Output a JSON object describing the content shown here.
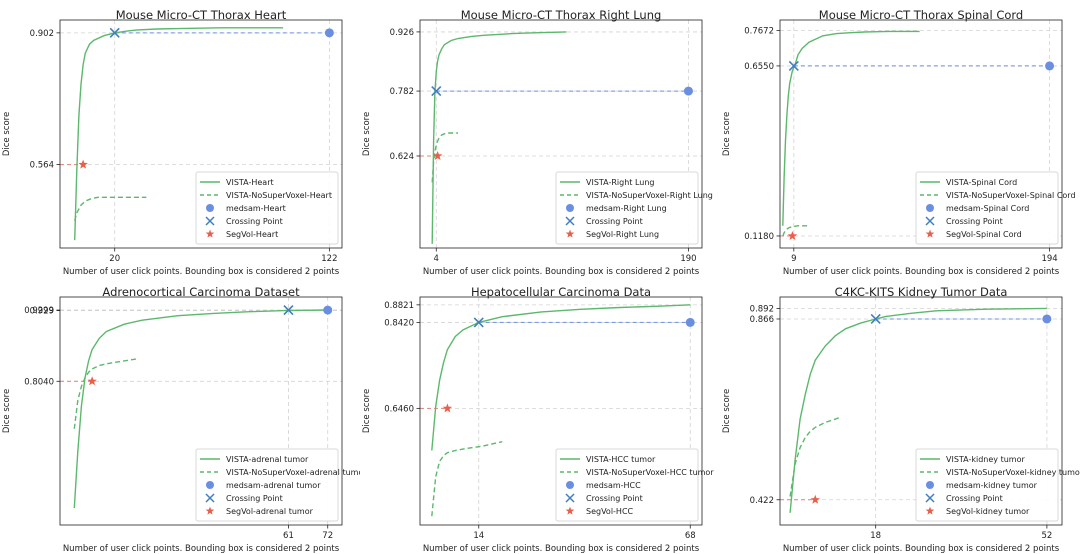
{
  "xlabel_common": "Number of user click points. Bounding box is considered 2 points",
  "ylabel_common": "Dice score",
  "colors": {
    "vista": "#5cb86c",
    "nosv": "#5cb86c",
    "medsam": "#6a8fe0",
    "crossing": "#3f7fbf",
    "segvol": "#e8604c",
    "grid": "#d3d3d3"
  },
  "legend_labels": {
    "medsam_prefix": "medsam-",
    "crossing": "Crossing Point",
    "segvol_prefix": "SegVol-"
  },
  "chart_data": [
    {
      "type": "line",
      "title": "Mouse Micro-CT Thorax Heart",
      "target": "Heart",
      "xlabel": "Number of user click points. Bounding box is considered 2 points",
      "ylabel": "Dice score",
      "xlim": [
        -6,
        128
      ],
      "ylim": [
        0.35,
        0.935
      ],
      "xticks": [
        20,
        122
      ],
      "yticks": [
        0.564,
        0.902
      ],
      "ytick_labels": [
        "0.564",
        "0.902"
      ],
      "series": [
        {
          "name": "VISTA-Heart",
          "style": "solid",
          "x": [
            1,
            2,
            3,
            4,
            5,
            6,
            8,
            10,
            15,
            20,
            25,
            30,
            40,
            50,
            60,
            70,
            80,
            90,
            100
          ],
          "y": [
            0.37,
            0.55,
            0.69,
            0.77,
            0.82,
            0.85,
            0.873,
            0.883,
            0.895,
            0.902,
            0.906,
            0.909,
            0.912,
            0.913,
            0.914,
            0.915,
            0.915,
            0.915,
            0.915
          ]
        },
        {
          "name": "VISTA-NoSuperVoxel-Heart",
          "style": "dashed",
          "x": [
            1,
            2,
            3,
            4,
            5,
            6,
            8,
            10,
            12,
            15,
            20,
            25,
            30,
            35
          ],
          "y": [
            0.42,
            0.44,
            0.45,
            0.46,
            0.465,
            0.47,
            0.475,
            0.478,
            0.48,
            0.48,
            0.48,
            0.48,
            0.48,
            0.48
          ]
        }
      ],
      "medsam": {
        "x": 122,
        "y": 0.902
      },
      "crossing": {
        "x": 20,
        "y": 0.902
      },
      "segvol": {
        "x": 5,
        "y": 0.564
      }
    },
    {
      "type": "line",
      "title": "Mouse Micro-CT Thorax Right Lung",
      "target": "Right Lung",
      "xlabel": "Number of user click points. Bounding box is considered 2 points",
      "ylabel": "Dice score",
      "xlim": [
        -8,
        200
      ],
      "ylim": [
        0.4,
        0.955
      ],
      "xticks": [
        4,
        190
      ],
      "yticks": [
        0.624,
        0.782,
        0.926
      ],
      "ytick_labels": [
        "0.624",
        "0.782",
        "0.926"
      ],
      "series": [
        {
          "name": "VISTA-Right Lung",
          "style": "solid",
          "x": [
            1,
            2,
            3,
            4,
            5,
            6,
            8,
            10,
            15,
            20,
            30,
            40,
            50,
            60,
            70,
            80,
            90,
            100
          ],
          "y": [
            0.41,
            0.66,
            0.78,
            0.83,
            0.855,
            0.87,
            0.885,
            0.895,
            0.905,
            0.91,
            0.915,
            0.918,
            0.92,
            0.922,
            0.923,
            0.924,
            0.925,
            0.926
          ]
        },
        {
          "name": "VISTA-NoSuperVoxel-Right Lung",
          "style": "dashed",
          "x": [
            1,
            2,
            3,
            4,
            5,
            6,
            8,
            10,
            12,
            15,
            20
          ],
          "y": [
            0.56,
            0.61,
            0.635,
            0.65,
            0.66,
            0.668,
            0.675,
            0.678,
            0.68,
            0.68,
            0.68
          ]
        }
      ],
      "medsam": {
        "x": 190,
        "y": 0.782
      },
      "crossing": {
        "x": 4,
        "y": 0.782
      },
      "segvol": {
        "x": 5,
        "y": 0.624
      }
    },
    {
      "type": "line",
      "title": "Mouse Micro-CT Thorax Spinal Cord",
      "target": "Spinal Cord",
      "xlabel": "Number of user click points. Bounding box is considered 2 points",
      "ylabel": "Dice score",
      "xlim": [
        -1,
        203
      ],
      "ylim": [
        0.08,
        0.8
      ],
      "xticks": [
        9,
        194
      ],
      "yticks": [
        0.118,
        0.655,
        0.7672
      ],
      "ytick_labels": [
        "0.1180",
        "0.6550",
        "0.7672"
      ],
      "series": [
        {
          "name": "VISTA-Spinal Cord",
          "style": "solid",
          "x": [
            1,
            2,
            3,
            4,
            5,
            6,
            8,
            10,
            12,
            15,
            20,
            25,
            30,
            40,
            50,
            60,
            70,
            80,
            90,
            100
          ],
          "y": [
            0.15,
            0.3,
            0.42,
            0.5,
            0.56,
            0.6,
            0.64,
            0.66,
            0.69,
            0.71,
            0.73,
            0.74,
            0.75,
            0.757,
            0.76,
            0.762,
            0.763,
            0.764,
            0.764,
            0.764
          ]
        },
        {
          "name": "VISTA-NoSuperVoxel-Spinal Cord",
          "style": "dashed",
          "x": [
            1,
            2,
            3,
            4,
            5,
            6,
            8,
            10,
            12,
            15,
            20
          ],
          "y": [
            0.118,
            0.128,
            0.135,
            0.14,
            0.143,
            0.145,
            0.147,
            0.149,
            0.15,
            0.15,
            0.15
          ]
        }
      ],
      "medsam": {
        "x": 194,
        "y": 0.655
      },
      "crossing": {
        "x": 9,
        "y": 0.655
      },
      "segvol": {
        "x": 8,
        "y": 0.118
      }
    },
    {
      "type": "line",
      "title": "Adrenocortical Carcinoma Dataset",
      "target": "adrenal tumor",
      "xlabel": "Number of user click points. Bounding box is considered 2 points",
      "ylabel": "Dice score",
      "xlim": [
        -3,
        76
      ],
      "ylim": [
        0.55,
        0.953
      ],
      "xticks": [
        61,
        72
      ],
      "yticks": [
        0.804,
        0.929,
        0.9299
      ],
      "ytick_labels": [
        "0.8040",
        "0.929",
        "0.9299"
      ],
      "series": [
        {
          "name": "VISTA-adrenal tumor",
          "style": "solid",
          "x": [
            1,
            2,
            3,
            4,
            5,
            6,
            8,
            10,
            15,
            20,
            30,
            40,
            50,
            60,
            72
          ],
          "y": [
            0.58,
            0.68,
            0.76,
            0.81,
            0.84,
            0.86,
            0.88,
            0.892,
            0.905,
            0.912,
            0.92,
            0.924,
            0.927,
            0.929,
            0.93
          ]
        },
        {
          "name": "VISTA-NoSuperVoxel-adrenal tumor",
          "style": "dashed",
          "x": [
            1,
            2,
            3,
            4,
            5,
            6,
            8,
            10,
            12,
            15,
            18,
            19
          ],
          "y": [
            0.72,
            0.77,
            0.795,
            0.81,
            0.82,
            0.826,
            0.832,
            0.835,
            0.837,
            0.84,
            0.843,
            0.845
          ]
        }
      ],
      "medsam": {
        "x": 72,
        "y": 0.9299
      },
      "crossing": {
        "x": 61,
        "y": 0.9299
      },
      "segvol": {
        "x": 6,
        "y": 0.804
      }
    },
    {
      "type": "line",
      "title": "Hepatocellular Carcinoma Data",
      "target": "HCC",
      "xlabel": "Number of user click points. Bounding box is considered 2 points",
      "ylabel": "Dice score",
      "xlim": [
        -1,
        71
      ],
      "ylim": [
        0.38,
        0.9
      ],
      "xticks": [
        14,
        68
      ],
      "yticks": [
        0.646,
        0.842,
        0.8821
      ],
      "ytick_labels": [
        "0.6460",
        "0.8420",
        "0.8821"
      ],
      "series": [
        {
          "name": "VISTA-HCC tumor",
          "style": "solid",
          "x": [
            2,
            3,
            4,
            5,
            6,
            8,
            10,
            14,
            20,
            30,
            40,
            50,
            60,
            68
          ],
          "y": [
            0.55,
            0.65,
            0.71,
            0.75,
            0.78,
            0.81,
            0.825,
            0.842,
            0.855,
            0.866,
            0.872,
            0.876,
            0.879,
            0.8821
          ]
        },
        {
          "name": "VISTA-NoSuperVoxel-HCC tumor",
          "style": "dashed",
          "x": [
            2,
            3,
            4,
            5,
            6,
            8,
            10,
            12,
            15,
            18,
            20
          ],
          "y": [
            0.4,
            0.49,
            0.525,
            0.538,
            0.545,
            0.55,
            0.553,
            0.556,
            0.56,
            0.566,
            0.57
          ]
        }
      ],
      "medsam": {
        "x": 68,
        "y": 0.842
      },
      "crossing": {
        "x": 14,
        "y": 0.842
      },
      "segvol": {
        "x": 6,
        "y": 0.646
      }
    },
    {
      "type": "line",
      "title": "C4KC-KITS Kidney Tumor Data",
      "target": "kidney tumor",
      "xlabel": "Number of user click points. Bounding box is considered 2 points",
      "ylabel": "Dice score",
      "xlim": [
        -1,
        55
      ],
      "ylim": [
        0.36,
        0.92
      ],
      "xticks": [
        18,
        52
      ],
      "yticks": [
        0.422,
        0.866,
        0.892
      ],
      "ytick_labels": [
        "0.422",
        "0.866",
        "0.892"
      ],
      "series": [
        {
          "name": "VISTA-kidney tumor",
          "style": "solid",
          "x": [
            1,
            2,
            3,
            4,
            5,
            6,
            8,
            10,
            12,
            15,
            18,
            20,
            25,
            30,
            40,
            52
          ],
          "y": [
            0.39,
            0.52,
            0.62,
            0.68,
            0.73,
            0.765,
            0.8,
            0.825,
            0.842,
            0.856,
            0.866,
            0.872,
            0.88,
            0.886,
            0.89,
            0.892
          ]
        },
        {
          "name": "VISTA-NoSuperVoxel-kidney tumor",
          "style": "dashed",
          "x": [
            1,
            2,
            3,
            4,
            5,
            6,
            8,
            10,
            11
          ],
          "y": [
            0.43,
            0.51,
            0.55,
            0.575,
            0.59,
            0.6,
            0.612,
            0.62,
            0.625
          ]
        }
      ],
      "medsam": {
        "x": 52,
        "y": 0.866
      },
      "crossing": {
        "x": 18,
        "y": 0.866
      },
      "segvol": {
        "x": 6,
        "y": 0.422
      }
    }
  ]
}
